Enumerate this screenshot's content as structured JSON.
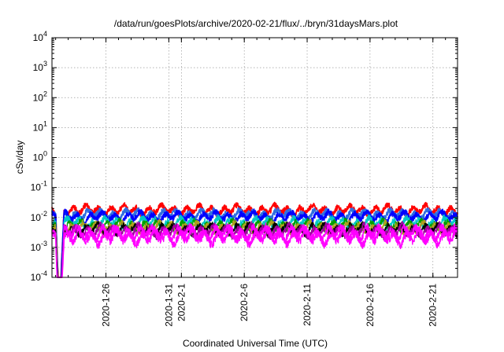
{
  "chart_data": {
    "type": "line",
    "title": "/data/run/goesPlots/archive/2020-02-21/flux/../bryn/31daysMars.plot",
    "xlabel": "Coordinated Universal Time (UTC)",
    "ylabel": "cSv/day",
    "y_scale": "log",
    "ylim_exp": [
      -4,
      4
    ],
    "y_ticks": [
      {
        "base": "10",
        "exp": "-4"
      },
      {
        "base": "10",
        "exp": "-3"
      },
      {
        "base": "10",
        "exp": "-2"
      },
      {
        "base": "10",
        "exp": "-1"
      },
      {
        "base": "10",
        "exp": "0"
      },
      {
        "base": "10",
        "exp": "1"
      },
      {
        "base": "10",
        "exp": "2"
      },
      {
        "base": "10",
        "exp": "3"
      },
      {
        "base": "10",
        "exp": "4"
      }
    ],
    "xlim": [
      "2020-01-21 17:00",
      "2020-02-22 23:00"
    ],
    "x_ticks": [
      "2020-1-26",
      "2020-1-31",
      "2020-2-1",
      "2020-2-6",
      "2020-2-11",
      "2020-2-16",
      "2020-2-21"
    ],
    "x_tick_dates": [
      "2020-01-26",
      "2020-01-31",
      "2020-02-01",
      "2020-02-06",
      "2020-02-11",
      "2020-02-16",
      "2020-02-21"
    ],
    "grid": true,
    "legend": "none",
    "series": [
      {
        "color": "#ff0000",
        "base": 0.0175,
        "amplitude": 0.2,
        "seed": 1
      },
      {
        "color": "#2f6fe0",
        "base": 0.0125,
        "amplitude": 0.2,
        "seed": 2
      },
      {
        "color": "#0000ff",
        "base": 0.0105,
        "amplitude": 0.2,
        "seed": 3
      },
      {
        "color": "#00c8c8",
        "base": 0.0065,
        "amplitude": 0.22,
        "seed": 4
      },
      {
        "color": "#00a000",
        "base": 0.0052,
        "amplitude": 0.22,
        "seed": 5
      },
      {
        "color": "#b0a020",
        "base": 0.0046,
        "amplitude": 0.22,
        "seed": 6
      },
      {
        "color": "#000000",
        "base": 0.004,
        "amplitude": 0.22,
        "seed": 7
      },
      {
        "color": "#a000a0",
        "base": 0.0036,
        "amplitude": 0.24,
        "seed": 8
      },
      {
        "color": "#ff00ff",
        "base": 0.003,
        "amplitude": 0.28,
        "seed": 9
      },
      {
        "color": "#ff00ff",
        "base": 0.0022,
        "amplitude": 0.3,
        "seed": 10
      }
    ],
    "dip": {
      "start": "2020-01-22 00:00",
      "min_date": "2020-01-22 07:00",
      "end": "2020-01-22 16:00"
    }
  }
}
